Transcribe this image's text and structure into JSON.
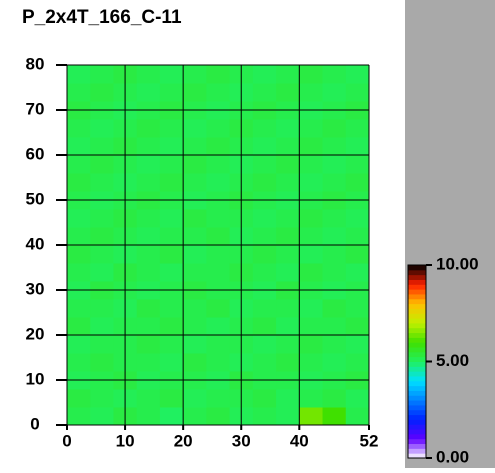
{
  "chart_data": {
    "type": "heatmap",
    "title": "P_2x4T_166_C-11",
    "xbins": [
      0,
      4,
      8,
      12,
      16,
      20,
      24,
      28,
      32,
      36,
      40,
      44,
      48,
      52
    ],
    "ybins": [
      0,
      4,
      8,
      12,
      16,
      20,
      24,
      28,
      32,
      36,
      40,
      44,
      48,
      52,
      56,
      60,
      64,
      68,
      72,
      76,
      80
    ],
    "values": [
      [
        5.2,
        5.1,
        5.3,
        5.2,
        5.0,
        5.2,
        5.3,
        5.1,
        5.2,
        5.1,
        6.4,
        6.0,
        5.2
      ],
      [
        5.3,
        5.2,
        5.1,
        5.2,
        5.3,
        5.1,
        5.2,
        5.2,
        5.3,
        5.1,
        5.2,
        5.3,
        5.1
      ],
      [
        5.1,
        5.2,
        5.3,
        5.1,
        5.2,
        5.2,
        5.1,
        5.3,
        5.2,
        5.2,
        5.1,
        5.2,
        5.3
      ],
      [
        5.2,
        5.3,
        5.2,
        5.2,
        5.1,
        5.3,
        5.2,
        5.1,
        5.2,
        5.3,
        5.2,
        5.1,
        5.2
      ],
      [
        5.1,
        5.2,
        5.2,
        5.3,
        5.2,
        5.1,
        5.2,
        5.2,
        5.1,
        5.2,
        5.3,
        5.2,
        5.1
      ],
      [
        5.3,
        5.1,
        5.2,
        5.2,
        5.3,
        5.2,
        5.1,
        5.2,
        5.3,
        5.1,
        5.2,
        5.2,
        5.3
      ],
      [
        5.2,
        5.2,
        5.1,
        5.3,
        5.2,
        5.2,
        5.3,
        5.1,
        5.2,
        5.2,
        5.1,
        5.3,
        5.2
      ],
      [
        5.1,
        5.3,
        5.2,
        5.1,
        5.2,
        5.3,
        5.2,
        5.2,
        5.1,
        5.3,
        5.2,
        5.1,
        5.2
      ],
      [
        5.2,
        5.1,
        5.3,
        5.2,
        5.1,
        5.2,
        5.2,
        5.3,
        5.2,
        5.1,
        5.3,
        5.2,
        5.1
      ],
      [
        5.3,
        5.2,
        5.1,
        5.2,
        5.3,
        5.1,
        5.2,
        5.2,
        5.3,
        5.2,
        5.1,
        5.2,
        5.3
      ],
      [
        5.2,
        5.3,
        5.2,
        5.1,
        5.2,
        5.2,
        5.3,
        5.1,
        5.2,
        5.3,
        5.2,
        5.1,
        5.2
      ],
      [
        5.1,
        5.2,
        5.3,
        5.2,
        5.1,
        5.3,
        5.2,
        5.2,
        5.1,
        5.2,
        5.3,
        5.2,
        5.1
      ],
      [
        5.2,
        5.1,
        5.2,
        5.3,
        5.2,
        5.1,
        5.2,
        5.3,
        5.2,
        5.1,
        5.2,
        5.3,
        5.2
      ],
      [
        5.3,
        5.2,
        5.1,
        5.2,
        5.3,
        5.2,
        5.1,
        5.2,
        5.3,
        5.2,
        5.1,
        5.2,
        5.3
      ],
      [
        5.2,
        5.3,
        5.2,
        5.1,
        5.2,
        5.3,
        5.2,
        5.1,
        5.2,
        5.3,
        5.2,
        5.1,
        5.2
      ],
      [
        5.1,
        5.2,
        5.3,
        5.2,
        5.1,
        5.2,
        5.3,
        5.2,
        5.1,
        5.2,
        5.3,
        5.2,
        5.1
      ],
      [
        5.2,
        5.1,
        5.2,
        5.3,
        5.2,
        5.1,
        5.2,
        5.3,
        5.2,
        5.1,
        5.2,
        5.3,
        5.2
      ],
      [
        5.3,
        5.2,
        5.1,
        5.2,
        5.3,
        5.2,
        5.1,
        5.2,
        5.3,
        5.2,
        5.1,
        5.2,
        5.3
      ],
      [
        5.2,
        5.3,
        5.2,
        5.1,
        5.2,
        5.3,
        5.2,
        5.1,
        5.2,
        5.3,
        5.2,
        5.1,
        5.2
      ],
      [
        5.1,
        5.2,
        5.3,
        5.2,
        5.1,
        5.2,
        5.3,
        5.2,
        5.1,
        5.2,
        5.3,
        5.2,
        5.1
      ]
    ],
    "xlim": [
      0,
      52
    ],
    "xticks": [
      0,
      10,
      20,
      30,
      40,
      52
    ],
    "ylim": [
      0,
      80
    ],
    "yticks": [
      0,
      10,
      20,
      30,
      40,
      50,
      60,
      70,
      80
    ],
    "grid": true,
    "clim": [
      0,
      10
    ],
    "cticks": [
      {
        "value": 0,
        "label": "0.00"
      },
      {
        "value": 5,
        "label": "5.00"
      },
      {
        "value": 10,
        "label": "10.00"
      }
    ],
    "colorscale": [
      "#ffffff",
      "#6000ff",
      "#0020ff",
      "#0080ff",
      "#00e0ff",
      "#20f060",
      "#40e000",
      "#c0f000",
      "#ffc000",
      "#ff2000",
      "#000000"
    ]
  }
}
